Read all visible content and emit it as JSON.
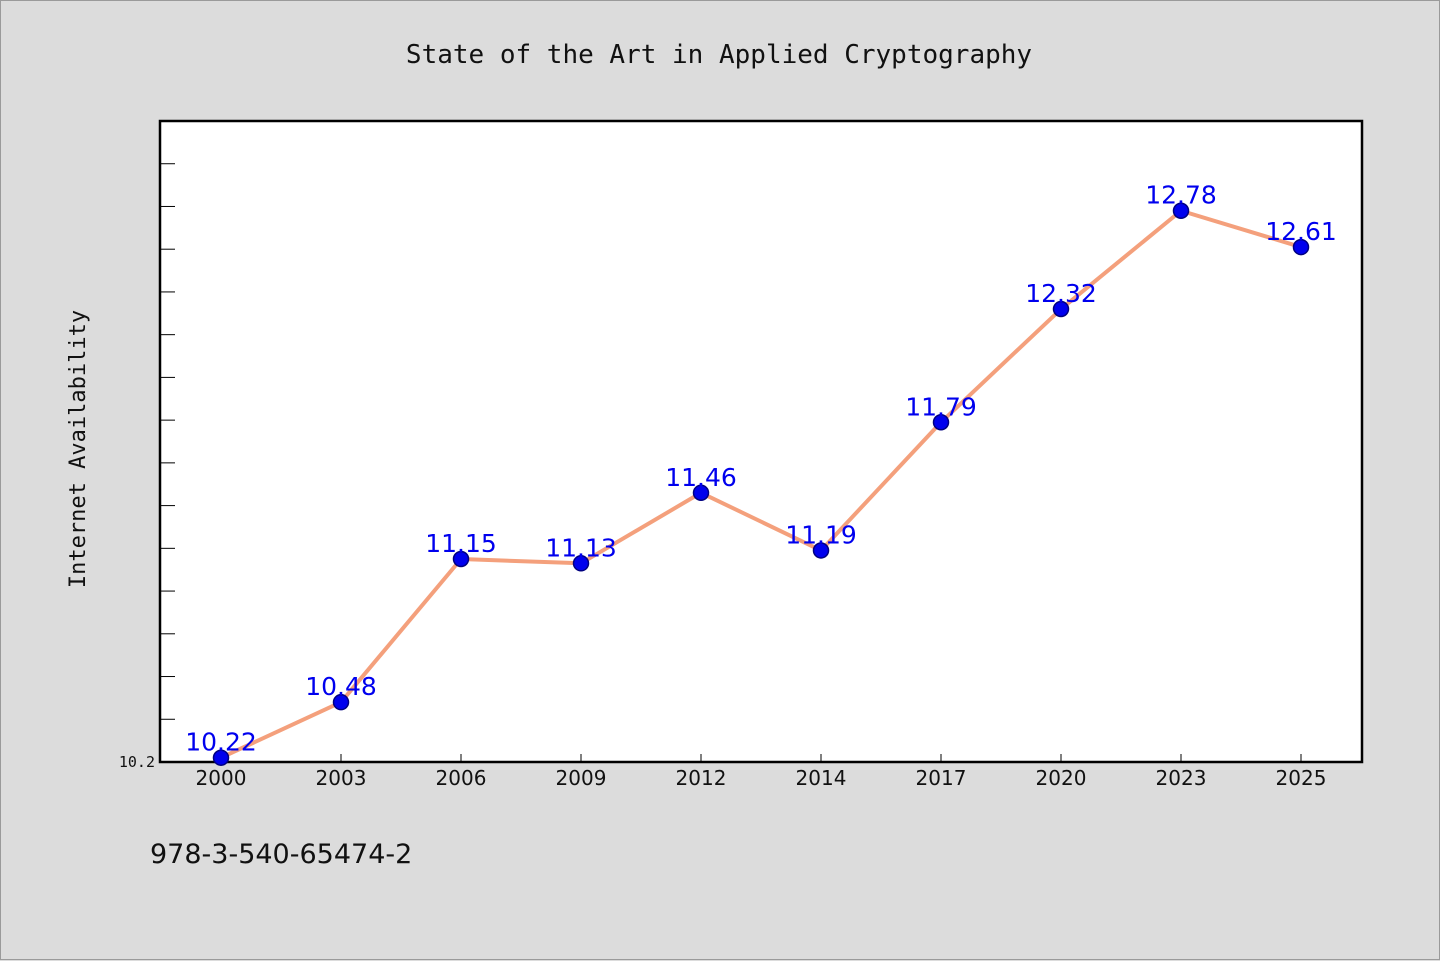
{
  "chart_data": {
    "type": "line",
    "title": "State of the Art in Applied Cryptography",
    "ylabel": "Internet Availability",
    "xlabel": "",
    "categories": [
      "2000",
      "2003",
      "2006",
      "2009",
      "2012",
      "2014",
      "2017",
      "2020",
      "2023",
      "2025"
    ],
    "series": [
      {
        "values": [
          10.22,
          10.48,
          11.15,
          11.13,
          11.46,
          11.19,
          11.79,
          12.32,
          12.78,
          12.61
        ],
        "labels": [
          "10.22",
          "10.48",
          "11.15",
          "11.13",
          "11.46",
          "11.19",
          "11.79",
          "12.32",
          "12.78",
          "12.61"
        ]
      }
    ],
    "ylim": [
      10.2,
      13.2
    ],
    "yticks": [
      {
        "value": 10.2,
        "label": "10.2"
      }
    ],
    "grid": false,
    "legend": "none",
    "colors": {
      "line": "#f4a07c",
      "marker": "#0000ee",
      "marker_edge": "#000080",
      "label": "#0000ee",
      "plot_bg": "#ffffff",
      "page_bg": "#dcdcdc"
    }
  },
  "footer": {
    "isbn": "978-3-540-65474-2"
  }
}
